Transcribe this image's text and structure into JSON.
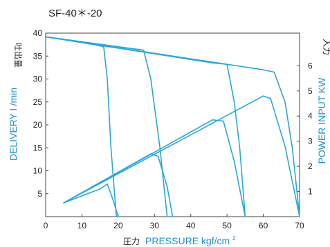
{
  "chart_data": {
    "type": "line",
    "title": "SF-40＊-20",
    "xlabel": {
      "jp": "圧力",
      "en": "PRESSURE kgf/cm",
      "sup": "2"
    },
    "ylabel_left": {
      "en": "DELIVERY l /min",
      "jp": "吐出量"
    },
    "ylabel_right": {
      "en": "POWER INPUT KW",
      "jp": "入力"
    },
    "xlim": [
      0,
      70
    ],
    "ylim_left": [
      0,
      40
    ],
    "ylim_right": [
      0,
      7.3
    ],
    "x_ticks": [
      0,
      10,
      20,
      30,
      40,
      50,
      60,
      70
    ],
    "y_left_ticks": [
      5,
      10,
      15,
      20,
      25,
      30,
      35,
      40
    ],
    "y_right_ticks": [
      1,
      2,
      3,
      4,
      5,
      6
    ],
    "grid": false,
    "line_color": "#29a6de",
    "axis_label_color": "#1f8fd0",
    "series": [
      {
        "axis": "left",
        "points": [
          [
            0,
            39.2
          ],
          [
            14,
            37.4
          ],
          [
            16,
            37
          ],
          [
            17,
            30
          ],
          [
            18,
            15
          ],
          [
            19.5,
            0
          ]
        ]
      },
      {
        "axis": "left",
        "points": [
          [
            0,
            39.2
          ],
          [
            24,
            36.6
          ],
          [
            27,
            36.3
          ],
          [
            29,
            30
          ],
          [
            31.5,
            15
          ],
          [
            33.5,
            0
          ]
        ]
      },
      {
        "axis": "left",
        "points": [
          [
            0,
            39.2
          ],
          [
            46,
            33.5
          ],
          [
            50,
            33.2
          ],
          [
            52,
            25
          ],
          [
            53.5,
            15
          ],
          [
            55,
            0
          ]
        ]
      },
      {
        "axis": "left",
        "points": [
          [
            0,
            39.2
          ],
          [
            60,
            32
          ],
          [
            63,
            31.5
          ],
          [
            66,
            25
          ],
          [
            68,
            15
          ],
          [
            70,
            0
          ]
        ]
      },
      {
        "axis": "right",
        "points": [
          [
            5,
            0.55
          ],
          [
            15,
            1.1
          ],
          [
            17,
            1.3
          ],
          [
            18.5,
            0.7
          ],
          [
            20,
            0
          ]
        ]
      },
      {
        "axis": "right",
        "points": [
          [
            5,
            0.55
          ],
          [
            29,
            2.5
          ],
          [
            31,
            2.4
          ],
          [
            33.5,
            1.2
          ],
          [
            35,
            0
          ]
        ]
      },
      {
        "axis": "right",
        "points": [
          [
            5,
            0.55
          ],
          [
            46,
            3.85
          ],
          [
            49,
            3.8
          ],
          [
            52,
            2.2
          ],
          [
            55,
            0
          ]
        ]
      },
      {
        "axis": "right",
        "points": [
          [
            5,
            0.55
          ],
          [
            60,
            4.8
          ],
          [
            62,
            4.7
          ],
          [
            66,
            2.8
          ],
          [
            70,
            0
          ]
        ]
      }
    ]
  }
}
